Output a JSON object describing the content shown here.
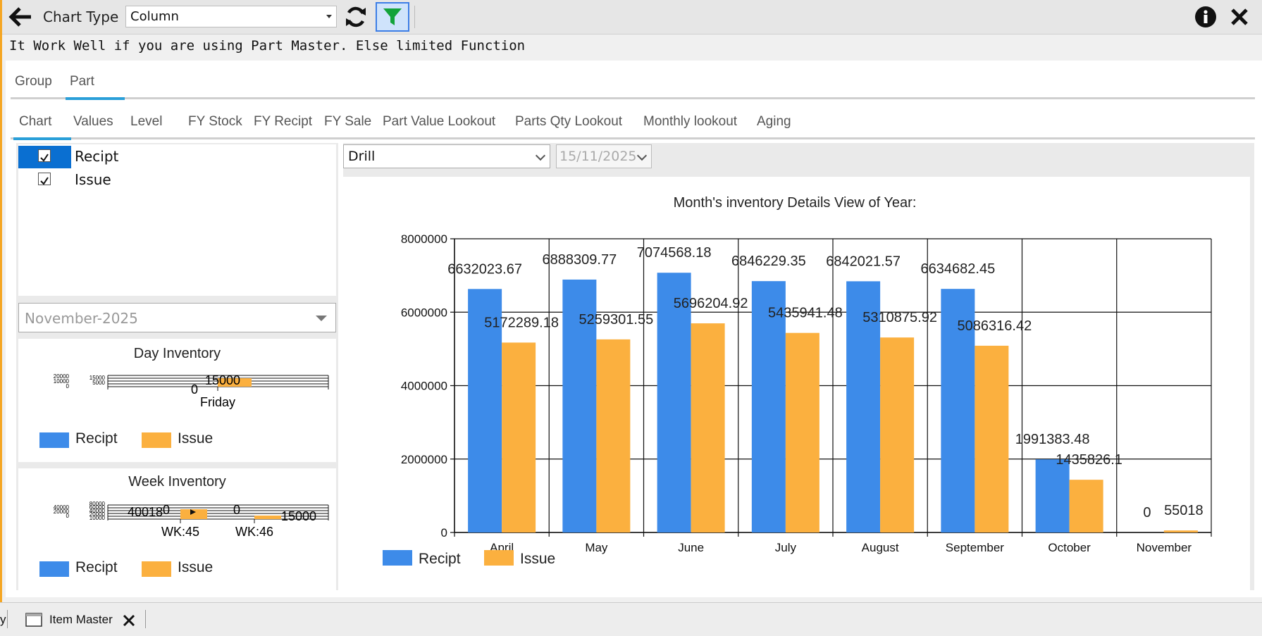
{
  "toolbar": {
    "chart_type_label": "Chart Type",
    "chart_type_value": "Column",
    "icons": [
      "arrow-left-icon",
      "refresh-icon",
      "filter-icon",
      "info-icon",
      "close-icon"
    ]
  },
  "notice": "It Work Well if you are using Part Master. Else limited Function",
  "tabs_top": [
    {
      "label": "Group"
    },
    {
      "label": "Part"
    }
  ],
  "tabs_top_active": "Part",
  "tabs_sub": [
    {
      "label": "Chart"
    },
    {
      "label": "Values"
    },
    {
      "label": "Level"
    },
    {
      "label": "FY Stock"
    },
    {
      "label": "FY Recipt"
    },
    {
      "label": "FY Sale"
    },
    {
      "label": "Part Value Lookout"
    },
    {
      "label": "Parts Qty Lookout"
    },
    {
      "label": "Monthly lookout"
    },
    {
      "label": "Aging"
    }
  ],
  "tabs_sub_active": "Chart",
  "series_list": [
    {
      "label": "Recipt",
      "checked": true,
      "selected": true
    },
    {
      "label": "Issue",
      "checked": true,
      "selected": false
    }
  ],
  "month_select": "November-2025",
  "day_inventory": {
    "title": "Day Inventory",
    "y_ticks_a": [
      "20000",
      "10000",
      "0"
    ],
    "y_ticks_b": [
      "15000",
      "5000"
    ],
    "category": "Friday",
    "recipt_value": "0",
    "issue_value": "15000",
    "legend": [
      "Recipt",
      "Issue"
    ]
  },
  "week_inventory": {
    "title": "Week Inventory",
    "y_ticks_a": [
      "40000",
      "20000",
      "0"
    ],
    "y_ticks_b": [
      "80000",
      "60000",
      "40000",
      "20000",
      "10000"
    ],
    "categories": [
      "WK:45",
      "WK:46"
    ],
    "labels": [
      "40018",
      "0",
      "0",
      "15000"
    ],
    "legend": [
      "Recipt",
      "Issue"
    ]
  },
  "drill_select": "Drill",
  "date_select": "15/11/2025",
  "colors": {
    "recipt": "#3d8be9",
    "issue": "#fbb03f",
    "tab_accent": "#2a9fd8"
  },
  "chart_data": {
    "type": "bar",
    "title": "Month's inventory Details View of Year:",
    "categories": [
      "April",
      "May",
      "June",
      "July",
      "August",
      "September",
      "October",
      "November"
    ],
    "series": [
      {
        "name": "Recipt",
        "values": [
          6632023.67,
          6888309.77,
          7074568.18,
          6846229.35,
          6842021.57,
          6634682.45,
          1991383.48,
          0
        ],
        "labels": [
          "6632023.67",
          "6888309.77",
          "7074568.18",
          "6846229.35",
          "6842021.57",
          "6634682.45",
          "1991383.48",
          "0"
        ]
      },
      {
        "name": "Issue",
        "values": [
          5172289.18,
          5259301.55,
          5696204.92,
          5435941.48,
          5310875.92,
          5086316.42,
          1435826.1,
          55018
        ],
        "labels": [
          "5172289.18",
          "5259301.55",
          "5696204.92",
          "5435941.48",
          "5310875.92",
          "5086316.42",
          "1435826.1",
          "55018"
        ]
      }
    ],
    "y_ticks": [
      "0",
      "2000000",
      "4000000",
      "6000000",
      "8000000"
    ],
    "ylim": [
      0,
      8000000
    ],
    "grid": true,
    "legend": "bottom-left"
  },
  "bottom_bar": {
    "item_label": "Item Master",
    "left_fragment": "y"
  }
}
